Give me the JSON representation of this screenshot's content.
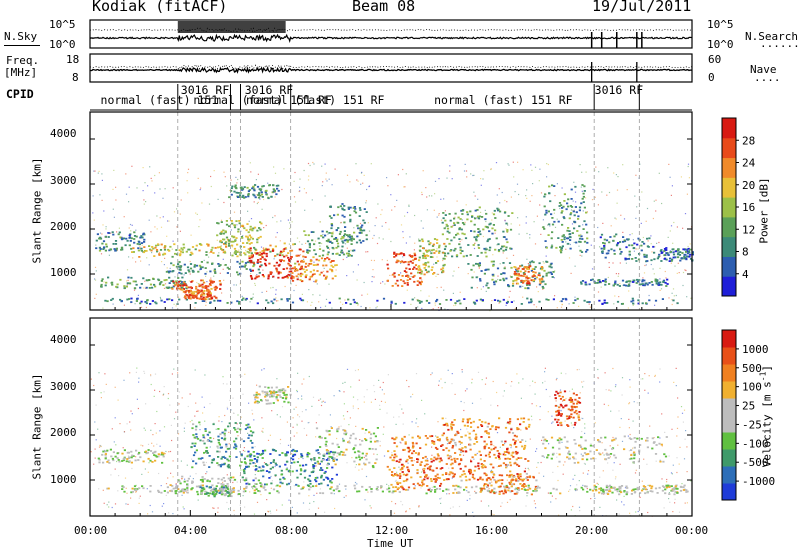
{
  "header": {
    "station": "Kodiak (fitACF)",
    "beam": "Beam 08",
    "date": "19/Jul/2011"
  },
  "sky_panel": {
    "left_label": "N.Sky",
    "right_label": "N.Search",
    "right_dots": "·······",
    "left_ticks": [
      "10^5",
      "10^0"
    ],
    "right_ticks": [
      "10^5",
      "10^0"
    ]
  },
  "freq_panel": {
    "left_label_1": "Freq.",
    "left_label_2": "[MHz]",
    "right_label": "Nave",
    "right_dots": "····",
    "left_ticks": [
      "18",
      "8"
    ],
    "right_ticks": [
      "60",
      "0"
    ]
  },
  "cpid_panel": {
    "label": "CPID",
    "entries": [
      {
        "text": "normal (fast) 151",
        "row": 2,
        "x": 0.3
      },
      {
        "text": "3016 RF",
        "row": 1,
        "x": 3.5
      },
      {
        "text": "normal (fast) 151 RF",
        "row": 2,
        "x": 4.0
      },
      {
        "text": "3016 RF",
        "row": 1,
        "x": 6.05
      },
      {
        "text": "normal (fast) 151 RF",
        "row": 2,
        "x": 6.1
      },
      {
        "text": "normal (fast) 151 RF",
        "row": 2,
        "x": 13.6
      },
      {
        "text": "3016 RF",
        "row": 1,
        "x": 20.0
      }
    ],
    "change_times": [
      3.5,
      5.6,
      6.0,
      8.0,
      20.1,
      21.9
    ]
  },
  "chart_data": [
    {
      "type": "heatmap",
      "name": "power",
      "ylabel": "Slant Range [km]",
      "ylim": [
        200,
        4600
      ],
      "yticks": [
        1000,
        2000,
        3000,
        4000
      ],
      "colorbar_label": "Power [dB]",
      "colorbar_ticks": [
        "28",
        "24",
        "20",
        "16",
        "12",
        "8",
        "4"
      ],
      "colors": [
        "#1f1fd8",
        "#2d5eb0",
        "#3c8a78",
        "#5aa058",
        "#9cc048",
        "#e8c038",
        "#f08a2a",
        "#e84a1a",
        "#d81a12"
      ],
      "blobs": [
        {
          "t0": 0.1,
          "t1": 23.8,
          "r0": 350,
          "r1": 480,
          "v": 0.22,
          "d": 0.6
        },
        {
          "t0": 0.2,
          "t1": 2.2,
          "r0": 1500,
          "r1": 1950,
          "v": 0.28,
          "d": 0.75
        },
        {
          "t0": 1.6,
          "t1": 8.2,
          "r0": 1400,
          "r1": 1700,
          "v": 0.55,
          "d": 0.85
        },
        {
          "t0": 0.3,
          "t1": 3.8,
          "r0": 700,
          "r1": 950,
          "v": 0.35,
          "d": 0.75
        },
        {
          "t0": 3.0,
          "t1": 6.8,
          "r0": 1000,
          "r1": 1300,
          "v": 0.3,
          "d": 0.75
        },
        {
          "t0": 3.2,
          "t1": 5.2,
          "r0": 620,
          "r1": 880,
          "v": 0.8,
          "d": 0.9
        },
        {
          "t0": 3.7,
          "t1": 5.0,
          "r0": 450,
          "r1": 650,
          "v": 0.75,
          "d": 0.9
        },
        {
          "t0": 5.0,
          "t1": 6.8,
          "r0": 1700,
          "r1": 2200,
          "v": 0.5,
          "d": 0.75
        },
        {
          "t0": 6.3,
          "t1": 8.5,
          "r0": 900,
          "r1": 1600,
          "v": 0.88,
          "d": 0.9
        },
        {
          "t0": 8.0,
          "t1": 9.8,
          "r0": 850,
          "r1": 1400,
          "v": 0.72,
          "d": 0.85
        },
        {
          "t0": 8.5,
          "t1": 10.5,
          "r0": 1400,
          "r1": 2000,
          "v": 0.35,
          "d": 0.7
        },
        {
          "t0": 9.5,
          "t1": 11.0,
          "r0": 1700,
          "r1": 2600,
          "v": 0.3,
          "d": 0.6
        },
        {
          "t0": 5.5,
          "t1": 7.5,
          "r0": 2700,
          "r1": 3000,
          "v": 0.3,
          "d": 0.55
        },
        {
          "t0": 11.8,
          "t1": 13.2,
          "r0": 750,
          "r1": 1500,
          "v": 0.85,
          "d": 0.9
        },
        {
          "t0": 13.0,
          "t1": 14.2,
          "r0": 1000,
          "r1": 1800,
          "v": 0.55,
          "d": 0.75
        },
        {
          "t0": 14.0,
          "t1": 16.8,
          "r0": 1400,
          "r1": 2500,
          "v": 0.38,
          "d": 0.6
        },
        {
          "t0": 15.0,
          "t1": 18.5,
          "r0": 700,
          "r1": 1300,
          "v": 0.3,
          "d": 0.6
        },
        {
          "t0": 16.8,
          "t1": 18.0,
          "r0": 800,
          "r1": 1200,
          "v": 0.72,
          "d": 0.85
        },
        {
          "t0": 18.0,
          "t1": 19.8,
          "r0": 1500,
          "r1": 3000,
          "v": 0.3,
          "d": 0.55
        },
        {
          "t0": 19.5,
          "t1": 23.0,
          "r0": 750,
          "r1": 900,
          "v": 0.22,
          "d": 0.7
        },
        {
          "t0": 20.3,
          "t1": 22.6,
          "r0": 1300,
          "r1": 1900,
          "v": 0.25,
          "d": 0.55
        },
        {
          "t0": 22.6,
          "t1": 24.0,
          "r0": 1300,
          "r1": 1600,
          "v": 0.22,
          "d": 0.5
        }
      ]
    },
    {
      "type": "heatmap",
      "name": "velocity",
      "ylabel": "Slant Range [km]",
      "ylim": [
        200,
        4600
      ],
      "yticks": [
        1000,
        2000,
        3000,
        4000
      ],
      "colorbar_label": "Velocity [m s^-1]",
      "colorbar_ticks": [
        "1000",
        "500",
        "100",
        "25",
        "-25",
        "-100",
        "-500",
        "-1000"
      ],
      "colors": [
        "#1f3cd8",
        "#2d6eb8",
        "#3f9a6a",
        "#60c040",
        "#bdbdbd",
        "#bdbdbd",
        "#f0b030",
        "#f08020",
        "#e85018",
        "#d81a12"
      ],
      "blobs": [
        {
          "t0": 0.1,
          "t1": 23.8,
          "r0": 720,
          "r1": 900,
          "v": 0.48,
          "d": 0.65
        },
        {
          "t0": 0.2,
          "t1": 3.0,
          "r0": 1400,
          "r1": 1700,
          "v": 0.5,
          "d": 0.65
        },
        {
          "t0": 3.0,
          "t1": 7.0,
          "r0": 700,
          "r1": 1100,
          "v": 0.48,
          "d": 0.7
        },
        {
          "t0": 4.0,
          "t1": 6.5,
          "r0": 1300,
          "r1": 2300,
          "v": 0.28,
          "d": 0.7
        },
        {
          "t0": 6.0,
          "t1": 9.8,
          "r0": 900,
          "r1": 1700,
          "v": 0.2,
          "d": 0.8
        },
        {
          "t0": 4.3,
          "t1": 5.6,
          "r0": 650,
          "r1": 900,
          "v": 0.32,
          "d": 0.8
        },
        {
          "t0": 9.0,
          "t1": 11.5,
          "r0": 1300,
          "r1": 2200,
          "v": 0.48,
          "d": 0.55
        },
        {
          "t0": 6.5,
          "t1": 8.0,
          "r0": 2700,
          "r1": 3100,
          "v": 0.5,
          "d": 0.5
        },
        {
          "t0": 11.8,
          "t1": 14.0,
          "r0": 800,
          "r1": 2000,
          "v": 0.78,
          "d": 0.85
        },
        {
          "t0": 14.0,
          "t1": 17.5,
          "r0": 1000,
          "r1": 2400,
          "v": 0.75,
          "d": 0.75
        },
        {
          "t0": 15.5,
          "t1": 17.8,
          "r0": 700,
          "r1": 1100,
          "v": 0.72,
          "d": 0.7
        },
        {
          "t0": 18.5,
          "t1": 19.5,
          "r0": 2200,
          "r1": 3000,
          "v": 0.85,
          "d": 0.6
        },
        {
          "t0": 18.0,
          "t1": 23.0,
          "r0": 1400,
          "r1": 2000,
          "v": 0.5,
          "d": 0.5
        },
        {
          "t0": 20.0,
          "t1": 23.8,
          "r0": 700,
          "r1": 900,
          "v": 0.5,
          "d": 0.65
        }
      ]
    }
  ],
  "axes": {
    "x_ticks": [
      "00:00",
      "04:00",
      "08:00",
      "12:00",
      "16:00",
      "20:00",
      "00:00"
    ],
    "xlabel": "Time UT",
    "xlim_hours": [
      0,
      24
    ],
    "dashed_times": [
      3.5,
      5.6,
      6.0,
      8.0,
      20.1,
      21.9
    ]
  }
}
